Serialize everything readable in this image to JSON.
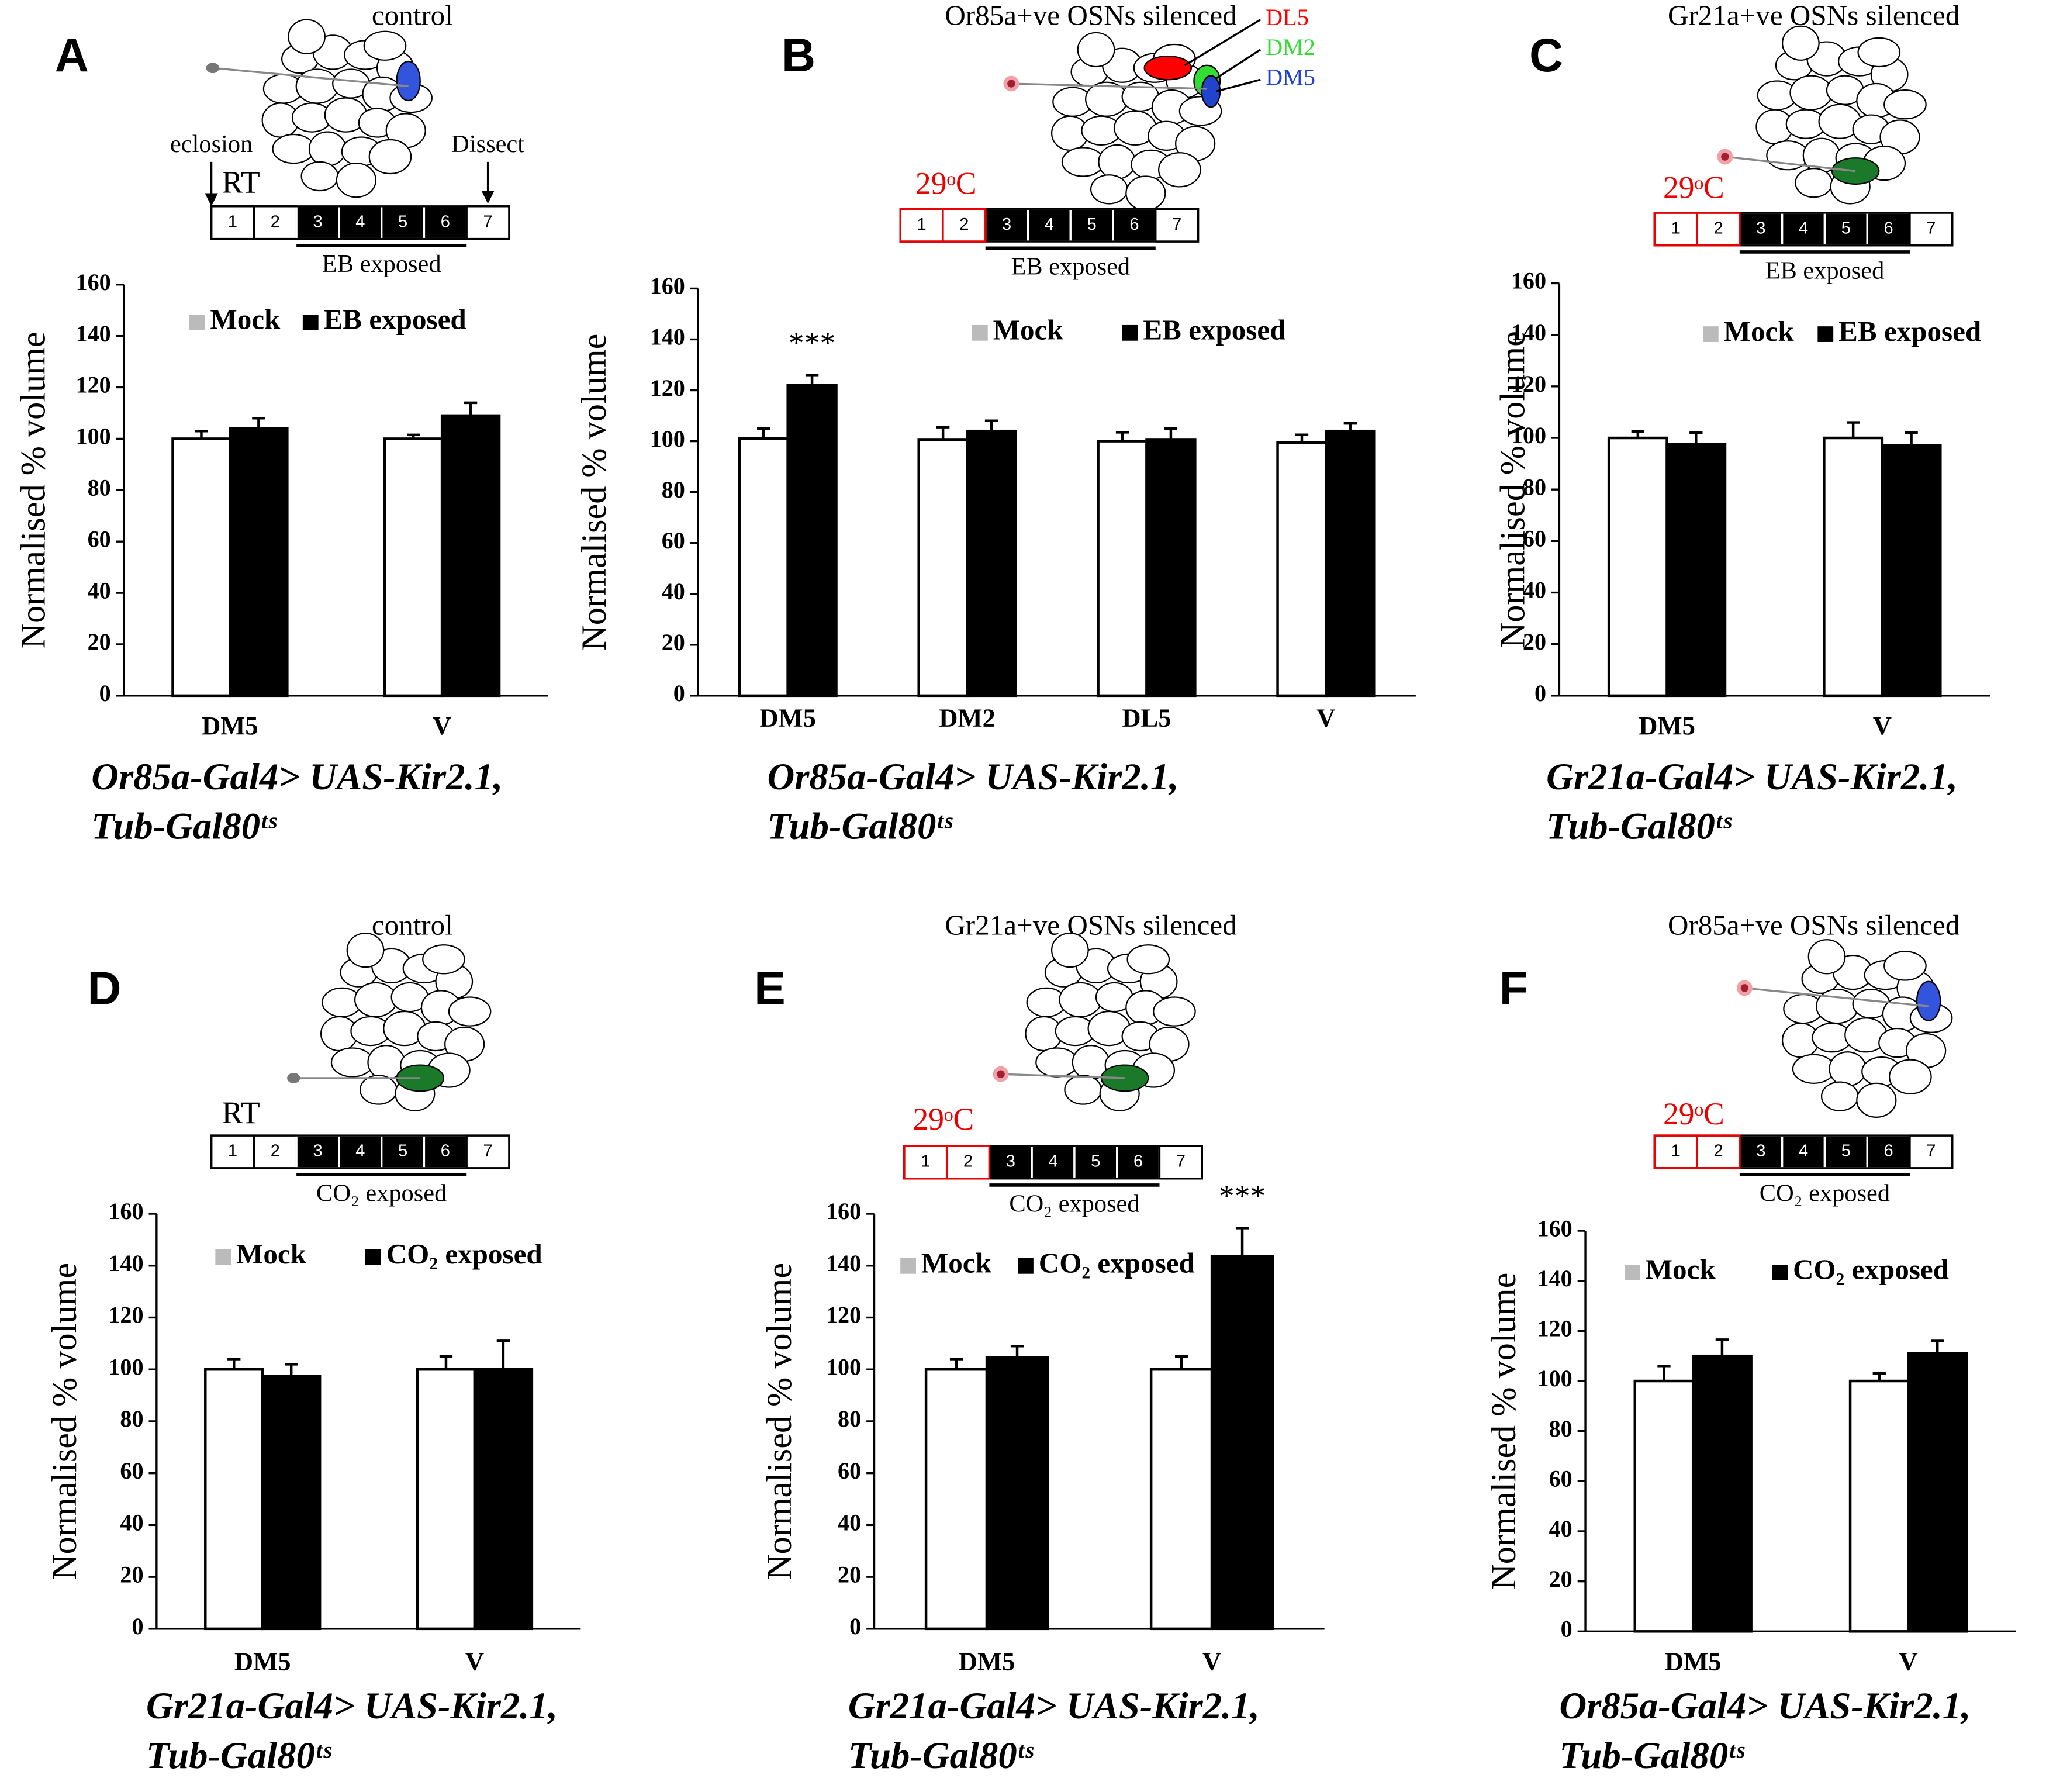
{
  "chart_data": [
    {
      "type": "bar",
      "panel": "A",
      "title": "control",
      "eclosion": "eclosion",
      "dissect": "Dissect",
      "condition": "RT",
      "days": [
        "1",
        "2",
        "3",
        "4",
        "5",
        "6",
        "7"
      ],
      "exposure": "EB exposed",
      "ylabel": "Normalised % volume",
      "categories": [
        "DM5",
        "V"
      ],
      "series": [
        {
          "name": "Mock",
          "color": "#ffffff",
          "legend_color": "#bbbbbb",
          "values": [
            100,
            100
          ],
          "errors": [
            3,
            1.5
          ]
        },
        {
          "name": "EB exposed",
          "color": "#000000",
          "legend_color": "#000000",
          "values": [
            104,
            109
          ],
          "errors": [
            4,
            5
          ]
        }
      ],
      "ylim": [
        0,
        160
      ],
      "yticks": [
        0,
        20,
        40,
        60,
        80,
        100,
        120,
        140,
        160
      ],
      "genotype": [
        "Or85a-Gal4> UAS-Kir2.1,",
        "Tub-Gal80ᵗˢ"
      ]
    },
    {
      "type": "bar",
      "panel": "B",
      "title": "Or85a+ve OSNs silenced",
      "condition": "29ᵒC",
      "glomeruli": [
        {
          "label": "DL5",
          "color": "#ff0000"
        },
        {
          "label": "DM2",
          "color": "#33dd33"
        },
        {
          "label": "DM5",
          "color": "#2244cc"
        }
      ],
      "days": [
        "1",
        "2",
        "3",
        "4",
        "5",
        "6",
        "7"
      ],
      "exposure": "EB exposed",
      "ylabel": "Normalised % volume",
      "categories": [
        "DM5",
        "DM2",
        "DL5",
        "V"
      ],
      "series": [
        {
          "name": "Mock",
          "color": "#ffffff",
          "legend_color": "#bbbbbb",
          "values": [
            101,
            100.5,
            100,
            99.5
          ],
          "errors": [
            4,
            5,
            3.5,
            3
          ]
        },
        {
          "name": "EB exposed",
          "color": "#000000",
          "legend_color": "#000000",
          "values": [
            122,
            104,
            100.5,
            104
          ],
          "errors": [
            4,
            4,
            4.5,
            3
          ]
        }
      ],
      "ylim": [
        0,
        160
      ],
      "yticks": [
        0,
        20,
        40,
        60,
        80,
        100,
        120,
        140,
        160
      ],
      "annotation": "***",
      "genotype": [
        "Or85a-Gal4> UAS-Kir2.1,",
        "Tub-Gal80ᵗˢ"
      ]
    },
    {
      "type": "bar",
      "panel": "C",
      "title": "Gr21a+ve OSNs silenced",
      "condition": "29ᵒC",
      "days": [
        "1",
        "2",
        "3",
        "4",
        "5",
        "6",
        "7"
      ],
      "exposure": "EB exposed",
      "ylabel": "Normalised % volume",
      "categories": [
        "DM5",
        "V"
      ],
      "series": [
        {
          "name": "Mock",
          "color": "#ffffff",
          "legend_color": "#bbbbbb",
          "values": [
            100,
            100
          ],
          "errors": [
            2.5,
            6
          ]
        },
        {
          "name": "EB exposed",
          "color": "#000000",
          "legend_color": "#000000",
          "values": [
            97.5,
            97
          ],
          "errors": [
            4.5,
            5
          ]
        }
      ],
      "ylim": [
        0,
        160
      ],
      "yticks": [
        0,
        20,
        40,
        60,
        80,
        100,
        120,
        140,
        160
      ],
      "genotype": [
        "Gr21a-Gal4> UAS-Kir2.1,",
        "Tub-Gal80ᵗˢ"
      ]
    },
    {
      "type": "bar",
      "panel": "D",
      "title": "control",
      "condition": "RT",
      "days": [
        "1",
        "2",
        "3",
        "4",
        "5",
        "6",
        "7"
      ],
      "exposure": "CO₂ exposed",
      "ylabel": "Normalised % volume",
      "categories": [
        "DM5",
        "V"
      ],
      "series": [
        {
          "name": "Mock",
          "color": "#ffffff",
          "legend_color": "#bbbbbb",
          "values": [
            100,
            100
          ],
          "errors": [
            4,
            5
          ]
        },
        {
          "name": "CO₂ exposed",
          "color": "#000000",
          "legend_color": "#000000",
          "values": [
            97.5,
            100
          ],
          "errors": [
            4.5,
            11
          ]
        }
      ],
      "ylim": [
        0,
        160
      ],
      "yticks": [
        0,
        20,
        40,
        60,
        80,
        100,
        120,
        140,
        160
      ],
      "genotype": [
        "Gr21a-Gal4> UAS-Kir2.1,",
        "Tub-Gal80ᵗˢ"
      ]
    },
    {
      "type": "bar",
      "panel": "E",
      "title": "Gr21a+ve OSNs silenced",
      "condition": "29ᵒC",
      "days": [
        "1",
        "2",
        "3",
        "4",
        "5",
        "6",
        "7"
      ],
      "exposure": "CO₂ exposed",
      "ylabel": "Normalised % volume",
      "categories": [
        "DM5",
        "V"
      ],
      "series": [
        {
          "name": "Mock",
          "color": "#ffffff",
          "legend_color": "#bbbbbb",
          "values": [
            100,
            100
          ],
          "errors": [
            4,
            5
          ]
        },
        {
          "name": "CO₂ exposed",
          "color": "#000000",
          "legend_color": "#000000",
          "values": [
            104.5,
            143.5
          ],
          "errors": [
            4.5,
            11
          ]
        }
      ],
      "ylim": [
        0,
        160
      ],
      "yticks": [
        0,
        20,
        40,
        60,
        80,
        100,
        120,
        140,
        160
      ],
      "annotation": "***",
      "genotype": [
        "Gr21a-Gal4> UAS-Kir2.1,",
        "Tub-Gal80ᵗˢ"
      ]
    },
    {
      "type": "bar",
      "panel": "F",
      "title": "Or85a+ve OSNs silenced",
      "condition": "29ᵒC",
      "days": [
        "1",
        "2",
        "3",
        "4",
        "5",
        "6",
        "7"
      ],
      "exposure": "CO₂ exposed",
      "ylabel": "Normalised % volume",
      "categories": [
        "DM5",
        "V"
      ],
      "series": [
        {
          "name": "Mock",
          "color": "#ffffff",
          "legend_color": "#bbbbbb",
          "values": [
            100,
            100
          ],
          "errors": [
            6,
            3
          ]
        },
        {
          "name": "CO₂ exposed",
          "color": "#000000",
          "legend_color": "#000000",
          "values": [
            110,
            111
          ],
          "errors": [
            6.5,
            5
          ]
        }
      ],
      "ylim": [
        0,
        160
      ],
      "yticks": [
        0,
        20,
        40,
        60,
        80,
        100,
        120,
        140,
        160
      ],
      "genotype": [
        "Or85a-Gal4> UAS-Kir2.1,",
        "Tub-Gal80ᵗˢ"
      ]
    }
  ]
}
